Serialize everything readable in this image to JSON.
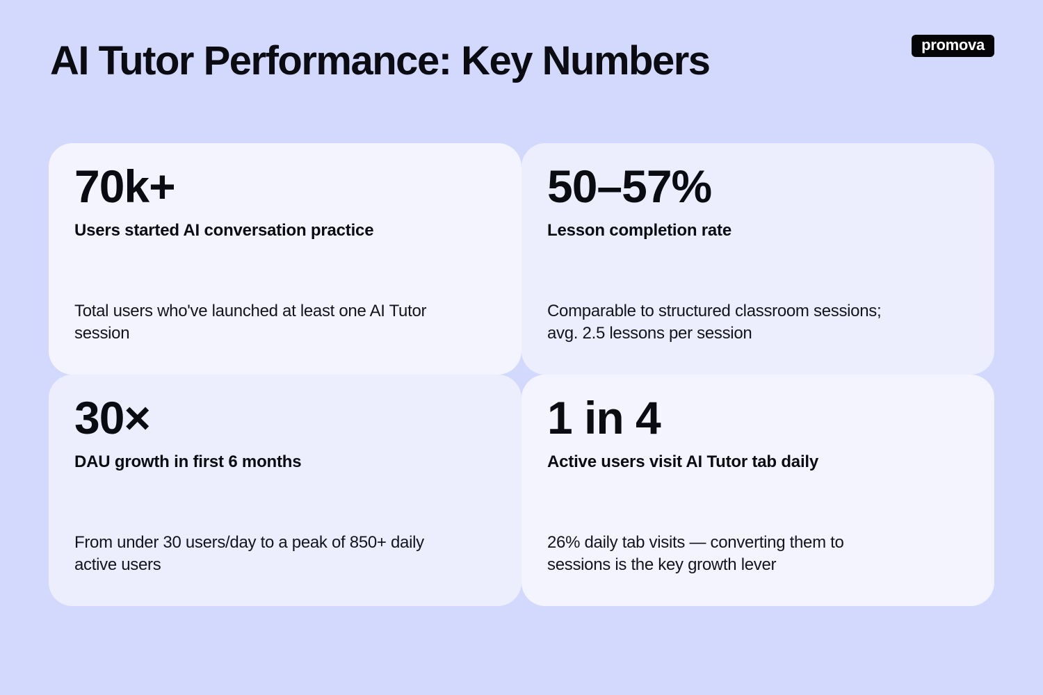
{
  "header": {
    "title": "AI Tutor Performance: Key Numbers",
    "logo_text": "promova"
  },
  "cards": [
    {
      "stat": "70k+",
      "label": "Users started AI conversation practice",
      "description": "Total users who've launched at least one AI Tutor session"
    },
    {
      "stat": "50–57%",
      "label": "Lesson completion rate",
      "description": "Comparable to structured classroom sessions; avg. 2.5 lessons per session"
    },
    {
      "stat": "30×",
      "label": "DAU growth in first 6 months",
      "description": "From under 30 users/day to a peak of 850+ daily active users"
    },
    {
      "stat": "1 in 4",
      "label": "Active users visit AI Tutor tab daily",
      "description": "26% daily tab visits — converting them to sessions is the key growth lever"
    }
  ],
  "colors": {
    "background": "#d2d9fd",
    "card_light": "#f3f4ff",
    "card_tint": "#eceefe",
    "text": "#0b0b12",
    "logo_bg": "#050507"
  }
}
